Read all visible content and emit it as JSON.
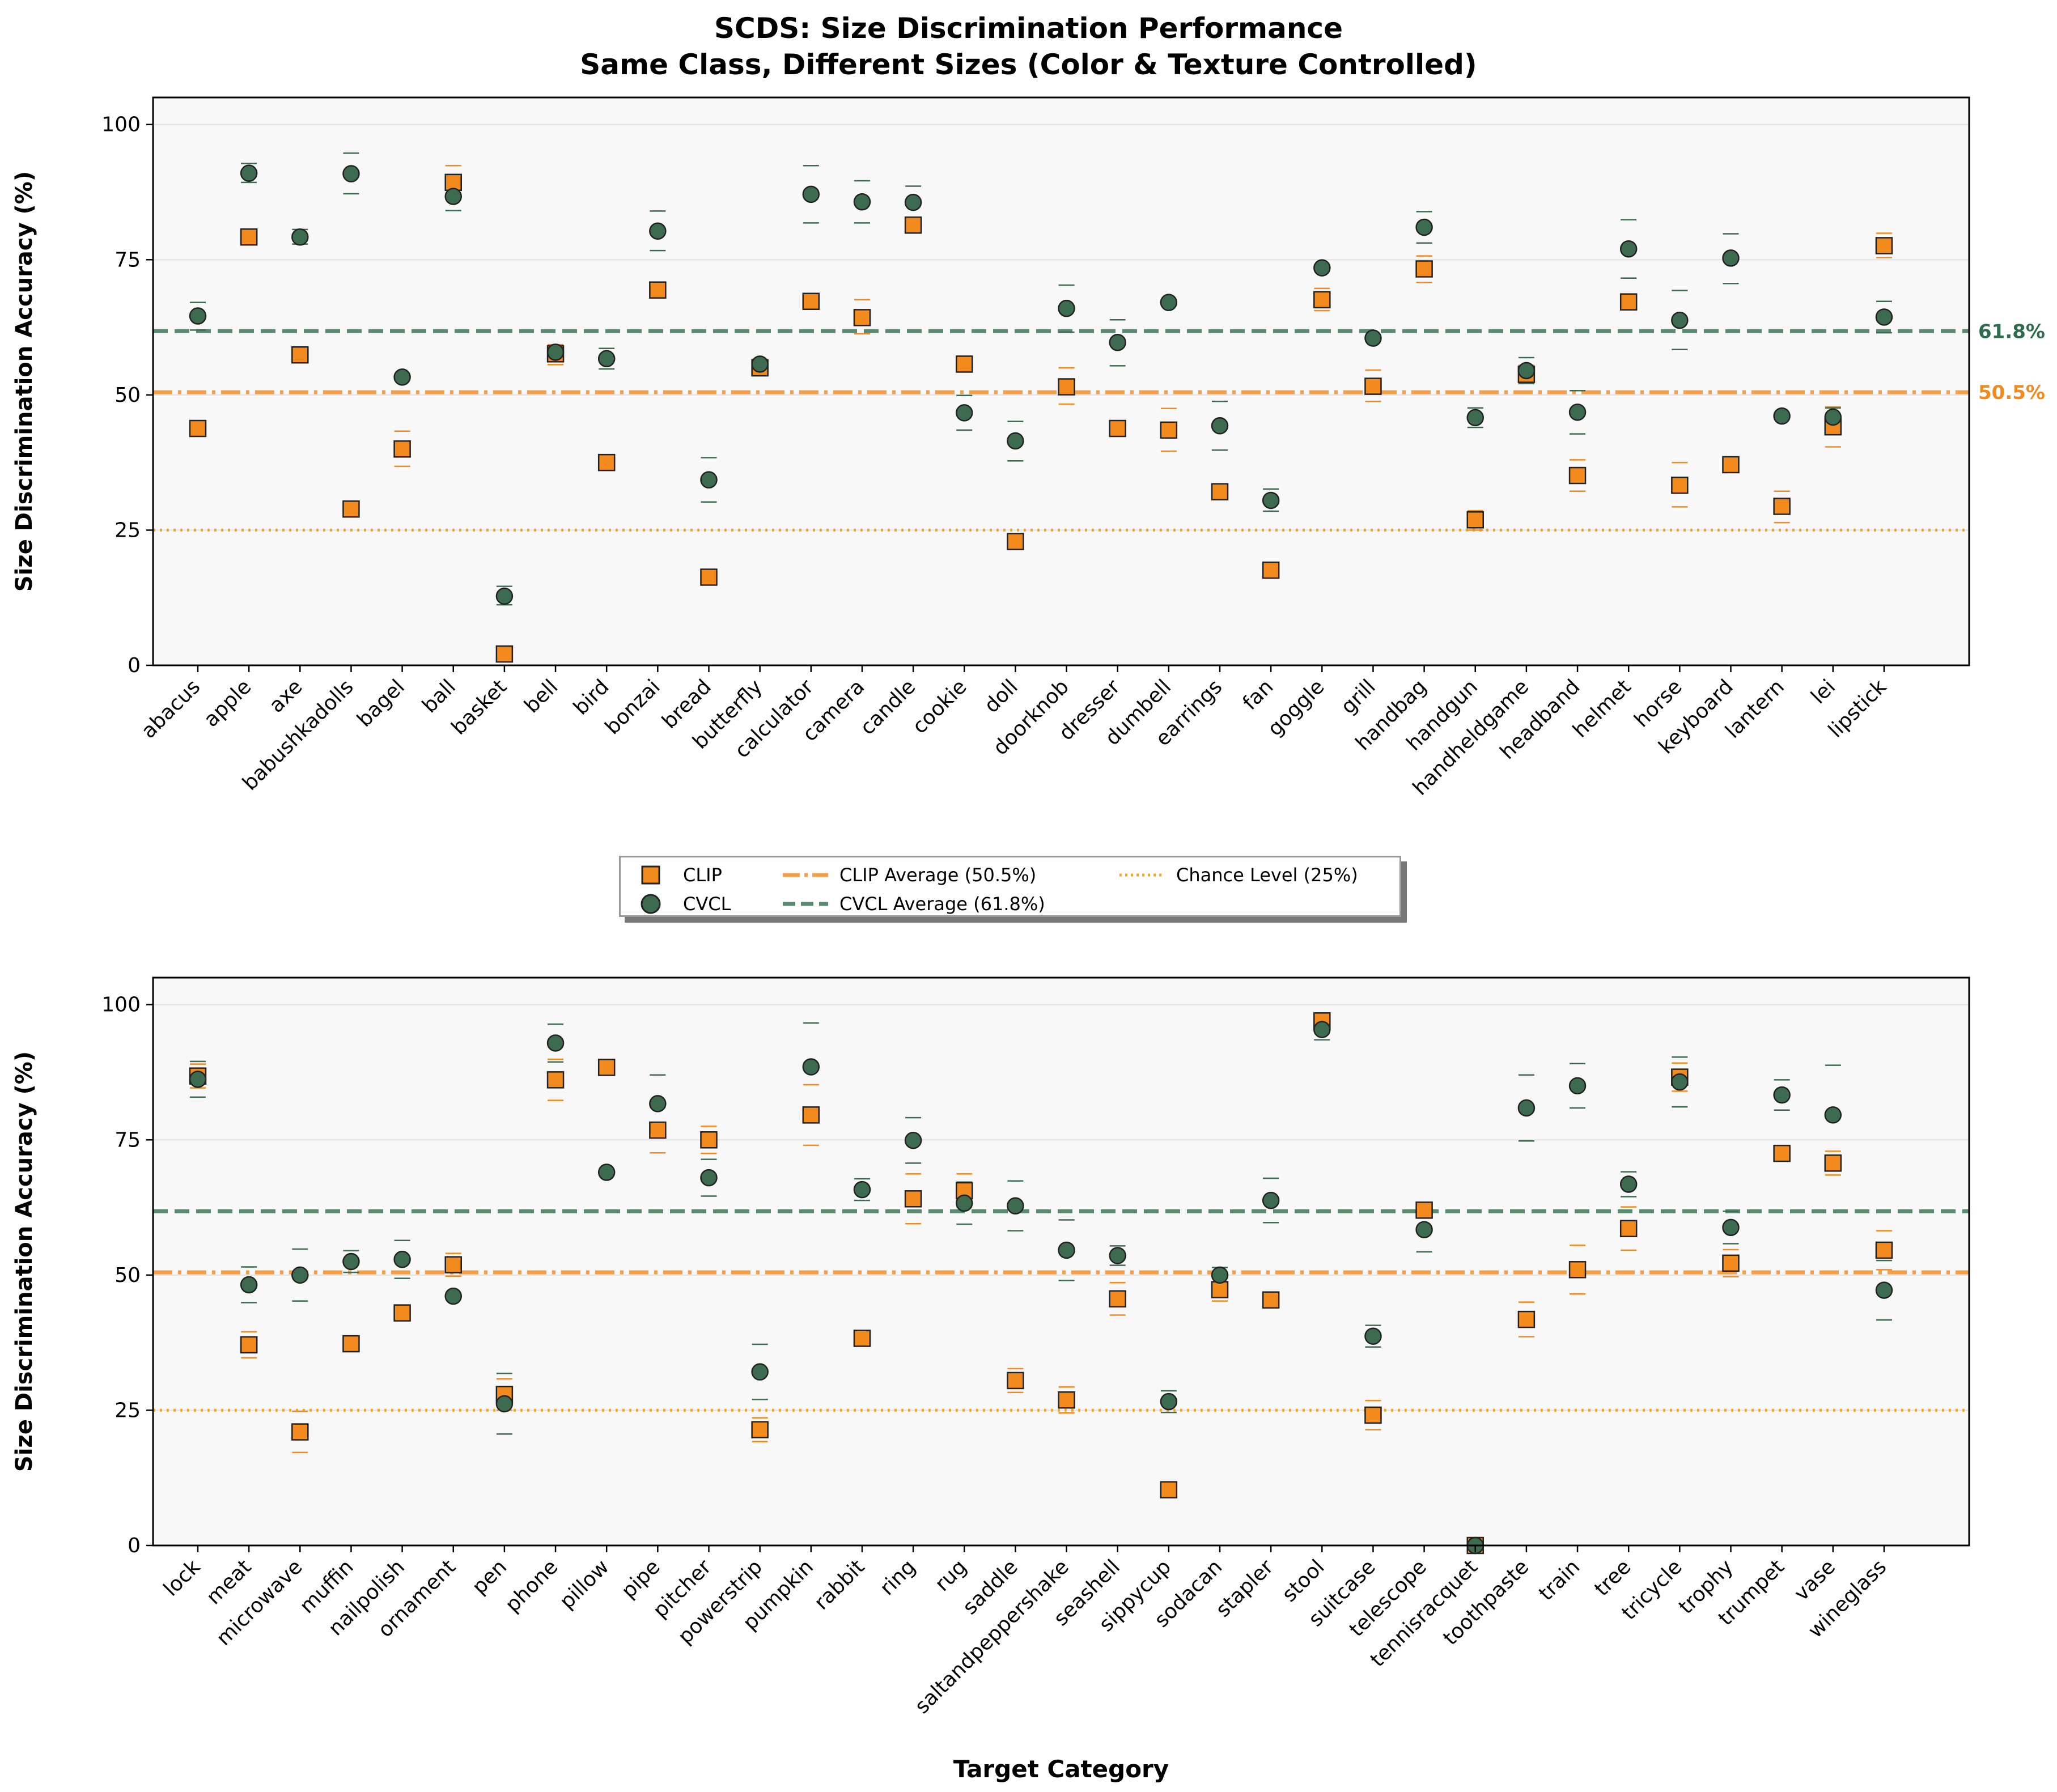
{
  "title_line1": "SCDS: Size Discrimination Performance",
  "title_line2": "Same Class, Different Sizes (Color & Texture Controlled)",
  "colors": {
    "clip": "#f28a1e",
    "cvcl": "#3d6b50",
    "clip_line": "#f4a04a",
    "cvcl_line": "#5a8a70",
    "chance": "#f0a830"
  },
  "legend": {
    "clip": "CLIP",
    "cvcl": "CVCL",
    "clip_avg": "CLIP Average (50.5%)",
    "cvcl_avg": "CVCL Average (61.8%)",
    "chance": "Chance Level (25%)"
  },
  "chart_data": [
    {
      "type": "scatter",
      "ylabel": "Size Discrimination Accuracy (%)",
      "xlabel": "",
      "ylim": [
        0,
        105
      ],
      "yticks": [
        0,
        25,
        50,
        75,
        100
      ],
      "clip_average": 50.5,
      "cvcl_average": 61.8,
      "chance_level": 25,
      "avg_labels": {
        "cvcl": "61.8%",
        "clip": "50.5%"
      },
      "categories": [
        "abacus",
        "apple",
        "axe",
        "babushkadolls",
        "bagel",
        "ball",
        "basket",
        "bell",
        "bird",
        "bonzai",
        "bread",
        "butterfly",
        "calculator",
        "camera",
        "candle",
        "cookie",
        "doll",
        "doorknob",
        "dresser",
        "dumbell",
        "earrings",
        "fan",
        "goggle",
        "grill",
        "handbag",
        "handgun",
        "handheldgame",
        "headband",
        "helmet",
        "horse",
        "keyboard",
        "lantern",
        "lei",
        "lipstick"
      ],
      "series": [
        {
          "name": "CLIP",
          "values": [
            43.8,
            79.2,
            57.4,
            28.9,
            40.0,
            89.3,
            2.1,
            57.6,
            37.5,
            69.4,
            16.3,
            55.0,
            67.3,
            64.3,
            81.4,
            55.7,
            22.9,
            51.5,
            43.8,
            43.5,
            32.1,
            17.6,
            67.6,
            51.6,
            73.3,
            26.9,
            53.8,
            35.1,
            67.2,
            33.3,
            37.1,
            29.4,
            44.1,
            77.6
          ]
        },
        {
          "name": "CVCL",
          "values": [
            64.6,
            91.0,
            79.2,
            90.9,
            53.3,
            86.7,
            12.8,
            57.9,
            56.7,
            80.3,
            34.3,
            55.7,
            87.1,
            85.7,
            85.6,
            46.7,
            41.5,
            66.0,
            59.7,
            67.1,
            44.3,
            30.5,
            73.5,
            60.5,
            81.0,
            45.8,
            54.5,
            46.8,
            77.0,
            63.8,
            75.3,
            46.1,
            45.9,
            64.4
          ]
        }
      ],
      "clip_error_bars": [
        [
          null,
          null
        ],
        [
          null,
          null
        ],
        [
          null,
          null
        ],
        [
          27.7,
          30.1
        ],
        [
          36.8,
          43.3
        ],
        [
          87.1,
          92.4
        ],
        [
          null,
          null
        ],
        [
          55.6,
          59.3
        ],
        [
          null,
          null
        ],
        [
          null,
          null
        ],
        [
          null,
          null
        ],
        [
          53.6,
          56.6
        ],
        [
          null,
          null
        ],
        [
          61.3,
          67.6
        ],
        [
          null,
          null
        ],
        [
          null,
          null
        ],
        [
          null,
          null
        ],
        [
          48.3,
          55.0
        ],
        [
          42.4,
          45.0
        ],
        [
          39.6,
          47.5
        ],
        [
          null,
          null
        ],
        [
          null,
          null
        ],
        [
          65.6,
          69.7
        ],
        [
          48.8,
          54.6
        ],
        [
          70.8,
          75.7
        ],
        [
          25.0,
          28.6
        ],
        [
          52.3,
          55.5
        ],
        [
          32.2,
          38.0
        ],
        [
          null,
          null
        ],
        [
          29.3,
          37.5
        ],
        [
          null,
          null
        ],
        [
          26.4,
          32.2
        ],
        [
          40.4,
          47.8
        ],
        [
          75.4,
          79.9
        ]
      ],
      "cvcl_error_bars": [
        [
          62.0,
          67.1
        ],
        [
          89.3,
          92.8
        ],
        [
          77.9,
          80.6
        ],
        [
          87.2,
          94.7
        ],
        [
          null,
          null
        ],
        [
          84.1,
          88.7
        ],
        [
          11.2,
          14.6
        ],
        [
          null,
          null
        ],
        [
          54.8,
          58.6
        ],
        [
          76.7,
          84.0
        ],
        [
          30.2,
          38.4
        ],
        [
          null,
          null
        ],
        [
          81.8,
          92.4
        ],
        [
          81.8,
          89.6
        ],
        [
          82.6,
          88.6
        ],
        [
          43.5,
          49.9
        ],
        [
          37.8,
          45.1
        ],
        [
          61.6,
          70.3
        ],
        [
          55.4,
          63.9
        ],
        [
          null,
          null
        ],
        [
          39.8,
          48.8
        ],
        [
          28.5,
          32.6
        ],
        [
          null,
          null
        ],
        [
          null,
          null
        ],
        [
          78.1,
          83.9
        ],
        [
          44.0,
          47.6
        ],
        [
          52.1,
          56.9
        ],
        [
          42.8,
          50.8
        ],
        [
          71.6,
          82.4
        ],
        [
          58.4,
          69.3
        ],
        [
          70.6,
          79.8
        ],
        [
          null,
          null
        ],
        [
          44.2,
          47.6
        ],
        [
          61.5,
          67.3
        ]
      ]
    },
    {
      "type": "scatter",
      "ylabel": "Size Discrimination Accuracy (%)",
      "xlabel": "Target Category",
      "ylim": [
        0,
        105
      ],
      "yticks": [
        0,
        25,
        50,
        75,
        100
      ],
      "clip_average": 50.5,
      "cvcl_average": 61.8,
      "chance_level": 25,
      "categories": [
        "lock",
        "meat",
        "microwave",
        "muffin",
        "nailpolish",
        "ornament",
        "pen",
        "phone",
        "pillow",
        "pipe",
        "pitcher",
        "powerstrip",
        "pumpkin",
        "rabbit",
        "ring",
        "rug",
        "saddle",
        "saltandpeppershake",
        "seashell",
        "sippycup",
        "sodacan",
        "stapler",
        "stool",
        "suitcase",
        "telescope",
        "tennisracquet",
        "toothpaste",
        "train",
        "tree",
        "tricycle",
        "trophy",
        "trumpet",
        "vase",
        "wineglass"
      ],
      "series": [
        {
          "name": "CLIP",
          "values": [
            86.8,
            37.1,
            21.0,
            37.3,
            43.0,
            51.9,
            27.9,
            86.1,
            88.4,
            76.8,
            75.0,
            21.4,
            79.6,
            38.3,
            64.1,
            65.6,
            30.5,
            26.9,
            45.6,
            10.3,
            47.3,
            45.4,
            97.0,
            24.1,
            62.0,
            0.0,
            41.8,
            51.0,
            58.6,
            86.6,
            52.2,
            72.5,
            70.7,
            54.6
          ]
        },
        {
          "name": "CVCL",
          "values": [
            86.2,
            48.2,
            50.0,
            52.5,
            52.9,
            46.1,
            26.2,
            92.9,
            69.0,
            81.7,
            68.0,
            32.1,
            88.5,
            65.8,
            74.9,
            63.3,
            62.8,
            54.6,
            53.6,
            26.6,
            50.0,
            63.8,
            95.4,
            38.7,
            58.4,
            0.0,
            80.9,
            85.0,
            66.8,
            85.7,
            58.8,
            83.3,
            79.6,
            47.2
          ]
        }
      ],
      "clip_error_bars": [
        [
          84.6,
          89.0
        ],
        [
          34.7,
          39.5
        ],
        [
          17.2,
          24.8
        ],
        [
          null,
          null
        ],
        [
          null,
          null
        ],
        [
          49.8,
          54.0
        ],
        [
          25.0,
          30.8
        ],
        [
          82.3,
          89.9
        ],
        [
          null,
          null
        ],
        [
          72.6,
          81.0
        ],
        [
          72.5,
          77.5
        ],
        [
          19.2,
          23.6
        ],
        [
          74.0,
          85.2
        ],
        [
          null,
          null
        ],
        [
          59.5,
          68.7
        ],
        [
          62.5,
          68.7
        ],
        [
          28.3,
          32.7
        ],
        [
          24.5,
          29.3
        ],
        [
          42.6,
          48.6
        ],
        [
          null,
          null
        ],
        [
          45.2,
          49.4
        ],
        [
          null,
          null
        ],
        [
          96.3,
          97.7
        ],
        [
          21.4,
          26.8
        ],
        [
          null,
          null
        ],
        [
          null,
          null
        ],
        [
          38.6,
          45.0
        ],
        [
          46.5,
          55.5
        ],
        [
          54.6,
          62.6
        ],
        [
          84.0,
          89.2
        ],
        [
          49.7,
          54.7
        ],
        [
          null,
          null
        ],
        [
          68.5,
          72.9
        ],
        [
          51.0,
          58.2
        ]
      ],
      "cvcl_error_bars": [
        [
          82.9,
          89.5
        ],
        [
          44.9,
          51.5
        ],
        [
          45.2,
          54.8
        ],
        [
          50.5,
          54.5
        ],
        [
          49.4,
          56.4
        ],
        [
          null,
          null
        ],
        [
          20.6,
          31.8
        ],
        [
          89.4,
          96.4
        ],
        [
          null,
          null
        ],
        [
          76.4,
          87.0
        ],
        [
          64.6,
          71.4
        ],
        [
          27.0,
          37.2
        ],
        [
          80.4,
          96.6
        ],
        [
          63.8,
          67.8
        ],
        [
          70.7,
          79.1
        ],
        [
          59.4,
          67.2
        ],
        [
          58.2,
          67.4
        ],
        [
          49.0,
          60.2
        ],
        [
          51.8,
          55.4
        ],
        [
          24.6,
          28.6
        ],
        [
          48.6,
          51.4
        ],
        [
          59.7,
          67.9
        ],
        [
          93.5,
          97.3
        ],
        [
          36.7,
          40.7
        ],
        [
          54.3,
          62.5
        ],
        [
          null,
          null
        ],
        [
          74.8,
          87.0
        ],
        [
          80.9,
          89.1
        ],
        [
          64.5,
          69.1
        ],
        [
          81.1,
          90.3
        ],
        [
          55.8,
          61.8
        ],
        [
          80.5,
          86.1
        ],
        [
          70.4,
          88.8
        ],
        [
          41.7,
          52.7
        ]
      ]
    }
  ]
}
